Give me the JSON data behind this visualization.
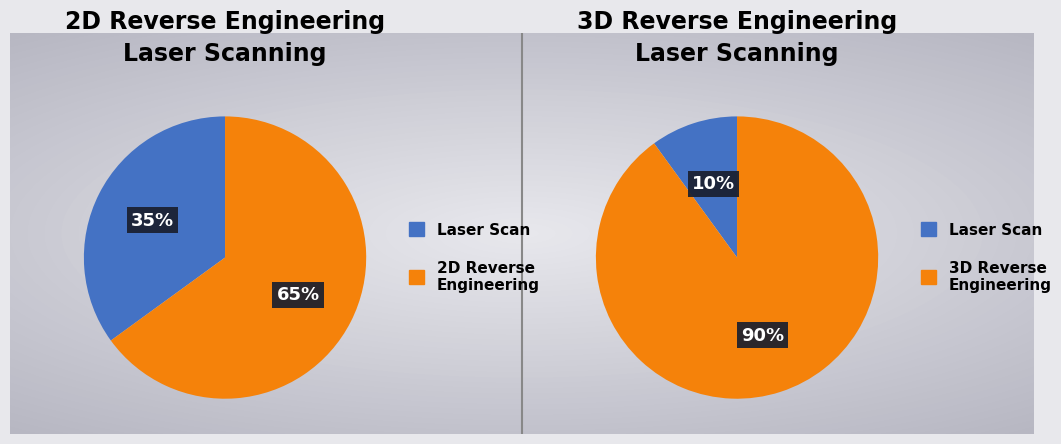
{
  "chart1": {
    "title": "2D Reverse Engineering\nLaser Scanning",
    "values": [
      35,
      65
    ],
    "labels": [
      "Laser Scan",
      "2D Reverse\nEngineering"
    ],
    "colors": [
      "#4472C4",
      "#F5820A"
    ],
    "pct_labels": [
      "35%",
      "65%"
    ],
    "startangle": 90,
    "pct_radii": [
      0.58,
      0.58
    ]
  },
  "chart2": {
    "title": "3D Reverse Engineering\nLaser Scanning",
    "values": [
      10,
      90
    ],
    "labels": [
      "Laser Scan",
      "3D Reverse\nEngineering"
    ],
    "colors": [
      "#4472C4",
      "#F5820A"
    ],
    "pct_labels": [
      "10%",
      "90%"
    ],
    "startangle": 90,
    "pct_radii": [
      0.55,
      0.58
    ]
  },
  "bg_color_center": "#e8e8ec",
  "bg_color_edge": "#b0b0b8",
  "title_fontsize": 17,
  "pct_fontsize": 13,
  "legend_fontsize": 11,
  "label_box_color": "#1a1f2e",
  "divider_color": "#888888"
}
